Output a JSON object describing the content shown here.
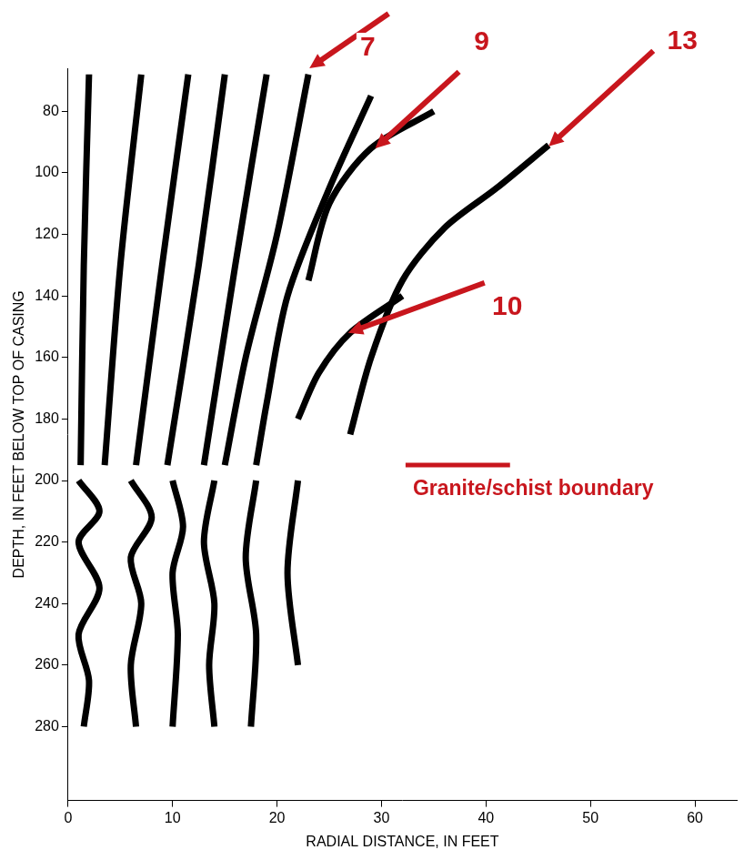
{
  "chart_data": {
    "type": "line",
    "x_label": "RADIAL DISTANCE, IN FEET",
    "y_label": "DEPTH, IN FEET BELOW TOP OF CASING",
    "xlim": [
      0,
      64
    ],
    "xticks": [
      0,
      10,
      20,
      30,
      40,
      50,
      60
    ],
    "ylim": [
      66,
      304
    ],
    "yticks": [
      80,
      100,
      120,
      140,
      160,
      180,
      200,
      220,
      240,
      260,
      280
    ],
    "grid": false,
    "marker": "none",
    "line_style": "solid",
    "series": [
      {
        "color": "#000000",
        "x": [
          2,
          1.5,
          1.2
        ],
        "values": [
          68,
          130,
          195
        ]
      },
      {
        "color": "#000000",
        "x": [
          7,
          5,
          3.5
        ],
        "values": [
          68,
          130,
          195
        ]
      },
      {
        "color": "#000000",
        "x": [
          11.5,
          9,
          6.5
        ],
        "values": [
          68,
          130,
          195
        ]
      },
      {
        "color": "#000000",
        "x": [
          15,
          12.5,
          9.5
        ],
        "values": [
          68,
          130,
          195
        ]
      },
      {
        "color": "#000000",
        "x": [
          19,
          16,
          13
        ],
        "values": [
          68,
          130,
          195
        ]
      },
      {
        "color": "#000000",
        "x": [
          23,
          20,
          17,
          15
        ],
        "values": [
          68,
          120,
          160,
          195
        ]
      },
      {
        "color": "#000000",
        "x": [
          29,
          25,
          21,
          19,
          18
        ],
        "values": [
          75,
          105,
          140,
          175,
          195
        ]
      },
      {
        "color": "#000000",
        "x": [
          35,
          29,
          25,
          23
        ],
        "values": [
          80,
          92,
          110,
          135
        ]
      },
      {
        "color": "#000000",
        "x": [
          46,
          41,
          36,
          32,
          29,
          27
        ],
        "values": [
          91,
          105,
          118,
          135,
          160,
          185
        ]
      },
      {
        "color": "#000000",
        "x": [
          32,
          27,
          24,
          22
        ],
        "values": [
          140,
          152,
          165,
          180
        ]
      },
      {
        "color": "#000000",
        "x": [
          1,
          3,
          1,
          3,
          1,
          2,
          1.5
        ],
        "values": [
          200,
          210,
          220,
          235,
          250,
          265,
          280
        ]
      },
      {
        "color": "#000000",
        "x": [
          6,
          8,
          6,
          7,
          6,
          6.5
        ],
        "values": [
          200,
          212,
          225,
          240,
          260,
          280
        ]
      },
      {
        "color": "#000000",
        "x": [
          10,
          11,
          10,
          10.5,
          10
        ],
        "values": [
          200,
          215,
          230,
          250,
          280
        ]
      },
      {
        "color": "#000000",
        "x": [
          14,
          13,
          14,
          13.5,
          14
        ],
        "values": [
          200,
          220,
          240,
          260,
          280
        ]
      },
      {
        "color": "#000000",
        "x": [
          18,
          17,
          18,
          17.5
        ],
        "values": [
          200,
          225,
          250,
          280
        ]
      },
      {
        "color": "#000000",
        "x": [
          22,
          21,
          22
        ],
        "values": [
          200,
          230,
          260
        ]
      }
    ],
    "annotations": [
      {
        "text": "7",
        "x": 23.1,
        "y": 66
      },
      {
        "text": "9",
        "x": 29.4,
        "y": 92
      },
      {
        "text": "13",
        "x": 46,
        "y": 91.4
      },
      {
        "text": "10",
        "x": 26.8,
        "y": 152
      }
    ],
    "boundary": {
      "text": "Granite/schist boundary",
      "x": [
        32.3,
        42.3
      ],
      "y": 195
    }
  }
}
